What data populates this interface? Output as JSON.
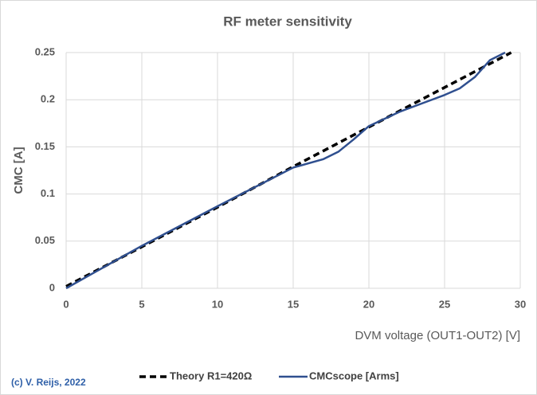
{
  "chart_data": {
    "type": "line",
    "title": "RF meter sensitivity",
    "x_label": "DVM voltage (OUT1-OUT2) [V]",
    "y_label": "CMC [A]",
    "annotation": "(c) V. Reijs, 2022",
    "xlim": [
      0,
      30
    ],
    "xticks": [
      0,
      5,
      10,
      15,
      20,
      25,
      30
    ],
    "ylim": [
      0,
      0.25
    ],
    "yticks": [
      0,
      0.05,
      0.1,
      0.15,
      0.2,
      0.25
    ],
    "grid": true,
    "legend": "bottom",
    "series": [
      {
        "name": "Theory R1=420Ω",
        "color": "#000000",
        "dashed": true,
        "x": [
          0,
          5,
          10,
          15,
          20,
          25,
          29.4
        ],
        "values": [
          0.002,
          0.044,
          0.086,
          0.129,
          0.171,
          0.213,
          0.25
        ]
      },
      {
        "name": "CMCscope [Arms]",
        "color": "#2f4f8f",
        "dashed": false,
        "x": [
          0,
          2,
          5,
          10,
          15,
          17,
          18,
          19,
          20,
          22,
          24,
          25,
          26,
          27,
          28,
          29
        ],
        "values": [
          0,
          0.018,
          0.045,
          0.087,
          0.128,
          0.137,
          0.145,
          0.158,
          0.172,
          0.187,
          0.199,
          0.205,
          0.212,
          0.224,
          0.242,
          0.25
        ]
      }
    ]
  }
}
